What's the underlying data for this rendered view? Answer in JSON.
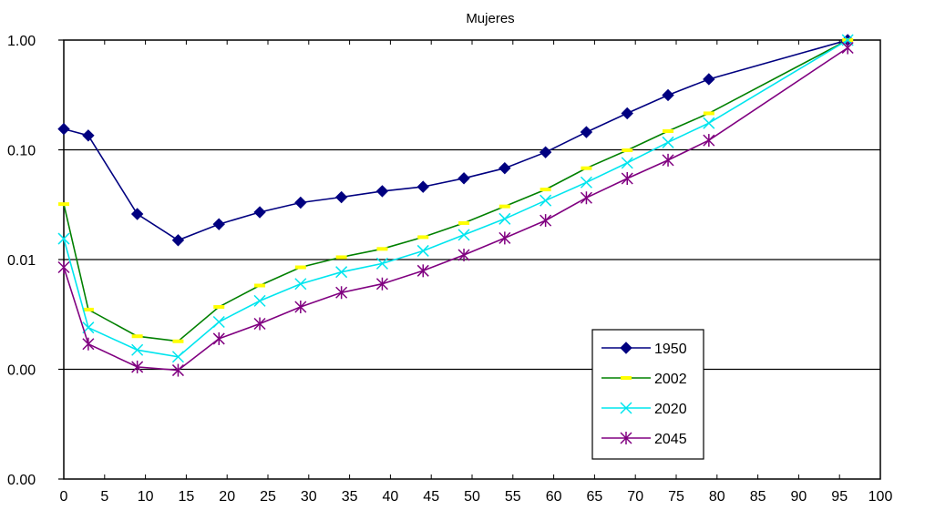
{
  "chart_data": {
    "type": "line",
    "title": "Mujeres",
    "xlabel": "",
    "ylabel": "",
    "yscale": "log",
    "xlim": [
      0,
      100
    ],
    "ylim": [
      0.0001,
      1
    ],
    "x_ticks": [
      "0",
      "5",
      "10",
      "15",
      "20",
      "25",
      "30",
      "35",
      "40",
      "45",
      "50",
      "55",
      "60",
      "65",
      "70",
      "75",
      "80",
      "85",
      "90",
      "95",
      "100"
    ],
    "y_ticks": [
      {
        "value": 1,
        "label": "1.00"
      },
      {
        "value": 0.1,
        "label": "0.10"
      },
      {
        "value": 0.01,
        "label": "0.01"
      },
      {
        "value": 0.001,
        "label": "0.00"
      },
      {
        "value": 0.0001,
        "label": "0.00"
      }
    ],
    "grid": "horizontal",
    "legend_position": "bottom-right",
    "series": [
      {
        "name": "1950",
        "color": "#000080",
        "marker": "diamond",
        "x": [
          0,
          3,
          9,
          14,
          19,
          24,
          29,
          34,
          39,
          44,
          49,
          54,
          59,
          64,
          69,
          74,
          79,
          96
        ],
        "y": [
          0.155,
          0.135,
          0.026,
          0.015,
          0.021,
          0.027,
          0.033,
          0.037,
          0.042,
          0.046,
          0.055,
          0.068,
          0.095,
          0.145,
          0.215,
          0.315,
          0.44,
          1.0
        ]
      },
      {
        "name": "2002",
        "color": "#008000",
        "marker": "dash",
        "x": [
          0,
          3,
          9,
          14,
          19,
          24,
          29,
          34,
          39,
          44,
          49,
          54,
          59,
          64,
          69,
          74,
          79,
          96
        ],
        "y": [
          0.032,
          0.0035,
          0.002,
          0.0018,
          0.0037,
          0.0058,
          0.0085,
          0.0105,
          0.0125,
          0.016,
          0.0215,
          0.0305,
          0.0435,
          0.068,
          0.099,
          0.148,
          0.215,
          1.0
        ]
      },
      {
        "name": "2020",
        "color": "#00e5ee",
        "marker": "x",
        "x": [
          0,
          3,
          9,
          14,
          19,
          24,
          29,
          34,
          39,
          44,
          49,
          54,
          59,
          64,
          69,
          74,
          79,
          96
        ],
        "y": [
          0.0155,
          0.0024,
          0.0015,
          0.0013,
          0.0027,
          0.0042,
          0.006,
          0.0077,
          0.0092,
          0.012,
          0.0168,
          0.0235,
          0.0345,
          0.0505,
          0.076,
          0.117,
          0.175,
          1.0
        ]
      },
      {
        "name": "2045",
        "color": "#800080",
        "marker": "asterisk",
        "x": [
          0,
          3,
          9,
          14,
          19,
          24,
          29,
          34,
          39,
          44,
          49,
          54,
          59,
          64,
          69,
          74,
          79,
          96
        ],
        "y": [
          0.0085,
          0.0017,
          0.00105,
          0.00098,
          0.0019,
          0.0026,
          0.0037,
          0.005,
          0.006,
          0.0079,
          0.011,
          0.0157,
          0.0227,
          0.0365,
          0.0548,
          0.0805,
          0.122,
          0.85
        ]
      }
    ]
  }
}
